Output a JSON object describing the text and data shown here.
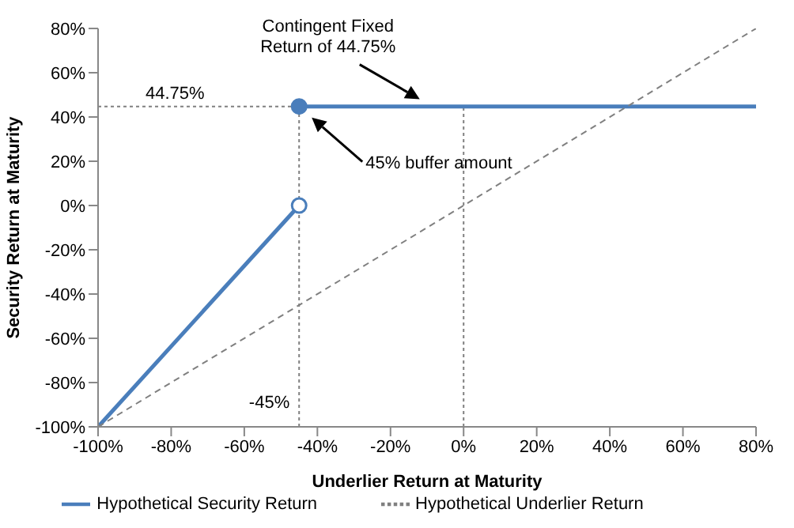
{
  "chart_data": {
    "type": "line",
    "xlabel": "Underlier Return at Maturity",
    "ylabel": "Security Return at Maturity",
    "legend": "bottom",
    "xlim": [
      -100,
      80
    ],
    "ylim": [
      -100,
      80
    ],
    "xticks": [
      {
        "value": -100,
        "label": "-100%"
      },
      {
        "value": -80,
        "label": "-80%"
      },
      {
        "value": -60,
        "label": "-60%"
      },
      {
        "value": -40,
        "label": "-40%"
      },
      {
        "value": -20,
        "label": "-20%"
      },
      {
        "value": 0,
        "label": "0%"
      },
      {
        "value": 20,
        "label": "20%"
      },
      {
        "value": 40,
        "label": "40%"
      },
      {
        "value": 60,
        "label": "60%"
      },
      {
        "value": 80,
        "label": "80%"
      }
    ],
    "yticks": [
      {
        "value": -100,
        "label": "-100%"
      },
      {
        "value": -80,
        "label": "-80%"
      },
      {
        "value": -60,
        "label": "-60%"
      },
      {
        "value": -40,
        "label": "-40%"
      },
      {
        "value": -20,
        "label": "-20%"
      },
      {
        "value": 0,
        "label": "0%"
      },
      {
        "value": 20,
        "label": "20%"
      },
      {
        "value": 40,
        "label": "40%"
      },
      {
        "value": 60,
        "label": "60%"
      },
      {
        "value": 80,
        "label": "80%"
      }
    ],
    "series": [
      {
        "name": "Hypothetical Security Return",
        "color": "#4a7ebb",
        "x": [
          -100,
          -45
        ],
        "values": [
          -100,
          0
        ],
        "marker": "circle",
        "line_style": "solid"
      },
      {
        "color": "#4a7ebb",
        "x": [
          -45,
          80
        ],
        "values": [
          44.75,
          44.75
        ],
        "marker": "circle",
        "line_style": "solid"
      },
      {
        "name": "Hypothetical Underlier Return",
        "color": "#808080",
        "x": [
          -100,
          80
        ],
        "values": [
          -100,
          80
        ],
        "line_style": "dashed"
      }
    ],
    "ref_lines": [
      {
        "axis": "y",
        "value": 44.75,
        "label": "44.75%",
        "color": "#808080",
        "line_style": "dotted"
      },
      {
        "axis": "x",
        "value": -45,
        "label": "-45%",
        "color": "#808080",
        "line_style": "dotted"
      },
      {
        "axis": "x",
        "value": 0,
        "color": "#808080",
        "line_style": "dotted"
      }
    ],
    "annotations": [
      {
        "text": "Contingent Fixed Return of 44.75%",
        "x": -12,
        "y": 48
      },
      "45% buffer amount"
    ]
  }
}
